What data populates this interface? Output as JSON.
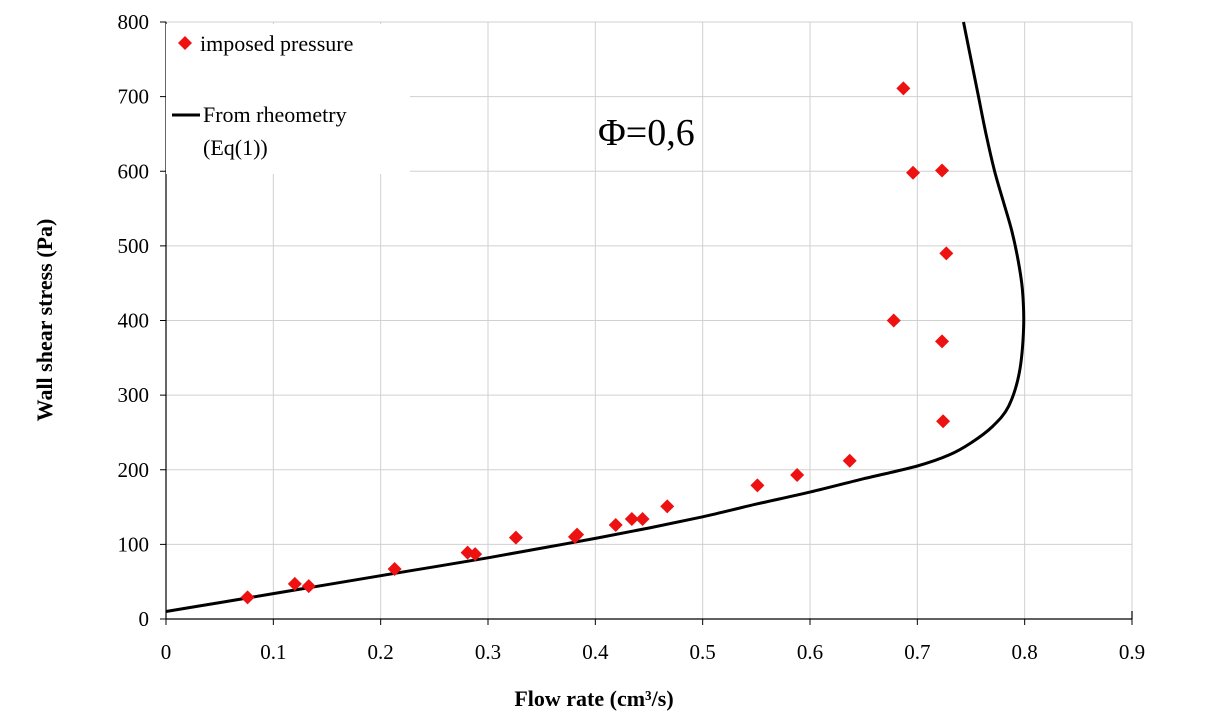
{
  "chart_data": {
    "type": "scatter",
    "title": "",
    "xlabel": "Flow rate (cm³/s)",
    "ylabel": "Wall shear stress (Pa)",
    "xlim": [
      0,
      0.9
    ],
    "ylim": [
      0,
      800
    ],
    "xticks": [
      0,
      0.1,
      0.2,
      0.3,
      0.4,
      0.5,
      0.6,
      0.7,
      0.8,
      0.9
    ],
    "xtick_labels": [
      "0",
      "0.1",
      "0.2",
      "0.3",
      "0.4",
      "0.5",
      "0.6",
      "0.7",
      "0.8",
      "0.9"
    ],
    "yticks": [
      0,
      100,
      200,
      300,
      400,
      500,
      600,
      700,
      800
    ],
    "ytick_labels": [
      "0",
      "100",
      "200",
      "300",
      "400",
      "500",
      "600",
      "700",
      "800"
    ],
    "grid": true,
    "legend_position": "top-left",
    "annotation": "Φ=0,6",
    "series": [
      {
        "name": "imposed pressure",
        "kind": "scatter",
        "marker": "diamond",
        "color": "#ee1111",
        "points": [
          [
            0.076,
            29
          ],
          [
            0.12,
            47
          ],
          [
            0.133,
            44
          ],
          [
            0.213,
            67
          ],
          [
            0.281,
            89
          ],
          [
            0.288,
            87
          ],
          [
            0.326,
            109
          ],
          [
            0.381,
            110
          ],
          [
            0.383,
            113
          ],
          [
            0.419,
            126
          ],
          [
            0.434,
            134
          ],
          [
            0.444,
            134
          ],
          [
            0.467,
            151
          ],
          [
            0.551,
            179
          ],
          [
            0.588,
            193
          ],
          [
            0.637,
            212
          ],
          [
            0.678,
            400
          ],
          [
            0.687,
            711
          ],
          [
            0.696,
            598
          ],
          [
            0.723,
            601
          ],
          [
            0.723,
            372
          ],
          [
            0.724,
            265
          ],
          [
            0.727,
            490
          ]
        ]
      },
      {
        "name": "From rheometry (Eq(1))",
        "legend_lines": [
          "From rheometry",
          "(Eq(1))"
        ],
        "kind": "line",
        "color": "#000000",
        "points": [
          [
            0,
            10
          ],
          [
            0.05,
            22
          ],
          [
            0.1,
            34
          ],
          [
            0.15,
            46
          ],
          [
            0.2,
            58
          ],
          [
            0.25,
            70
          ],
          [
            0.3,
            82
          ],
          [
            0.35,
            95
          ],
          [
            0.4,
            108
          ],
          [
            0.45,
            122
          ],
          [
            0.5,
            137
          ],
          [
            0.55,
            154
          ],
          [
            0.6,
            170
          ],
          [
            0.65,
            188
          ],
          [
            0.7,
            205
          ],
          [
            0.73,
            220
          ],
          [
            0.75,
            236
          ],
          [
            0.77,
            258
          ],
          [
            0.785,
            285
          ],
          [
            0.795,
            330
          ],
          [
            0.799,
            390
          ],
          [
            0.798,
            440
          ],
          [
            0.794,
            480
          ],
          [
            0.788,
            520
          ],
          [
            0.78,
            560
          ],
          [
            0.772,
            600
          ],
          [
            0.764,
            650
          ],
          [
            0.757,
            700
          ],
          [
            0.75,
            750
          ],
          [
            0.743,
            800
          ]
        ]
      }
    ]
  }
}
